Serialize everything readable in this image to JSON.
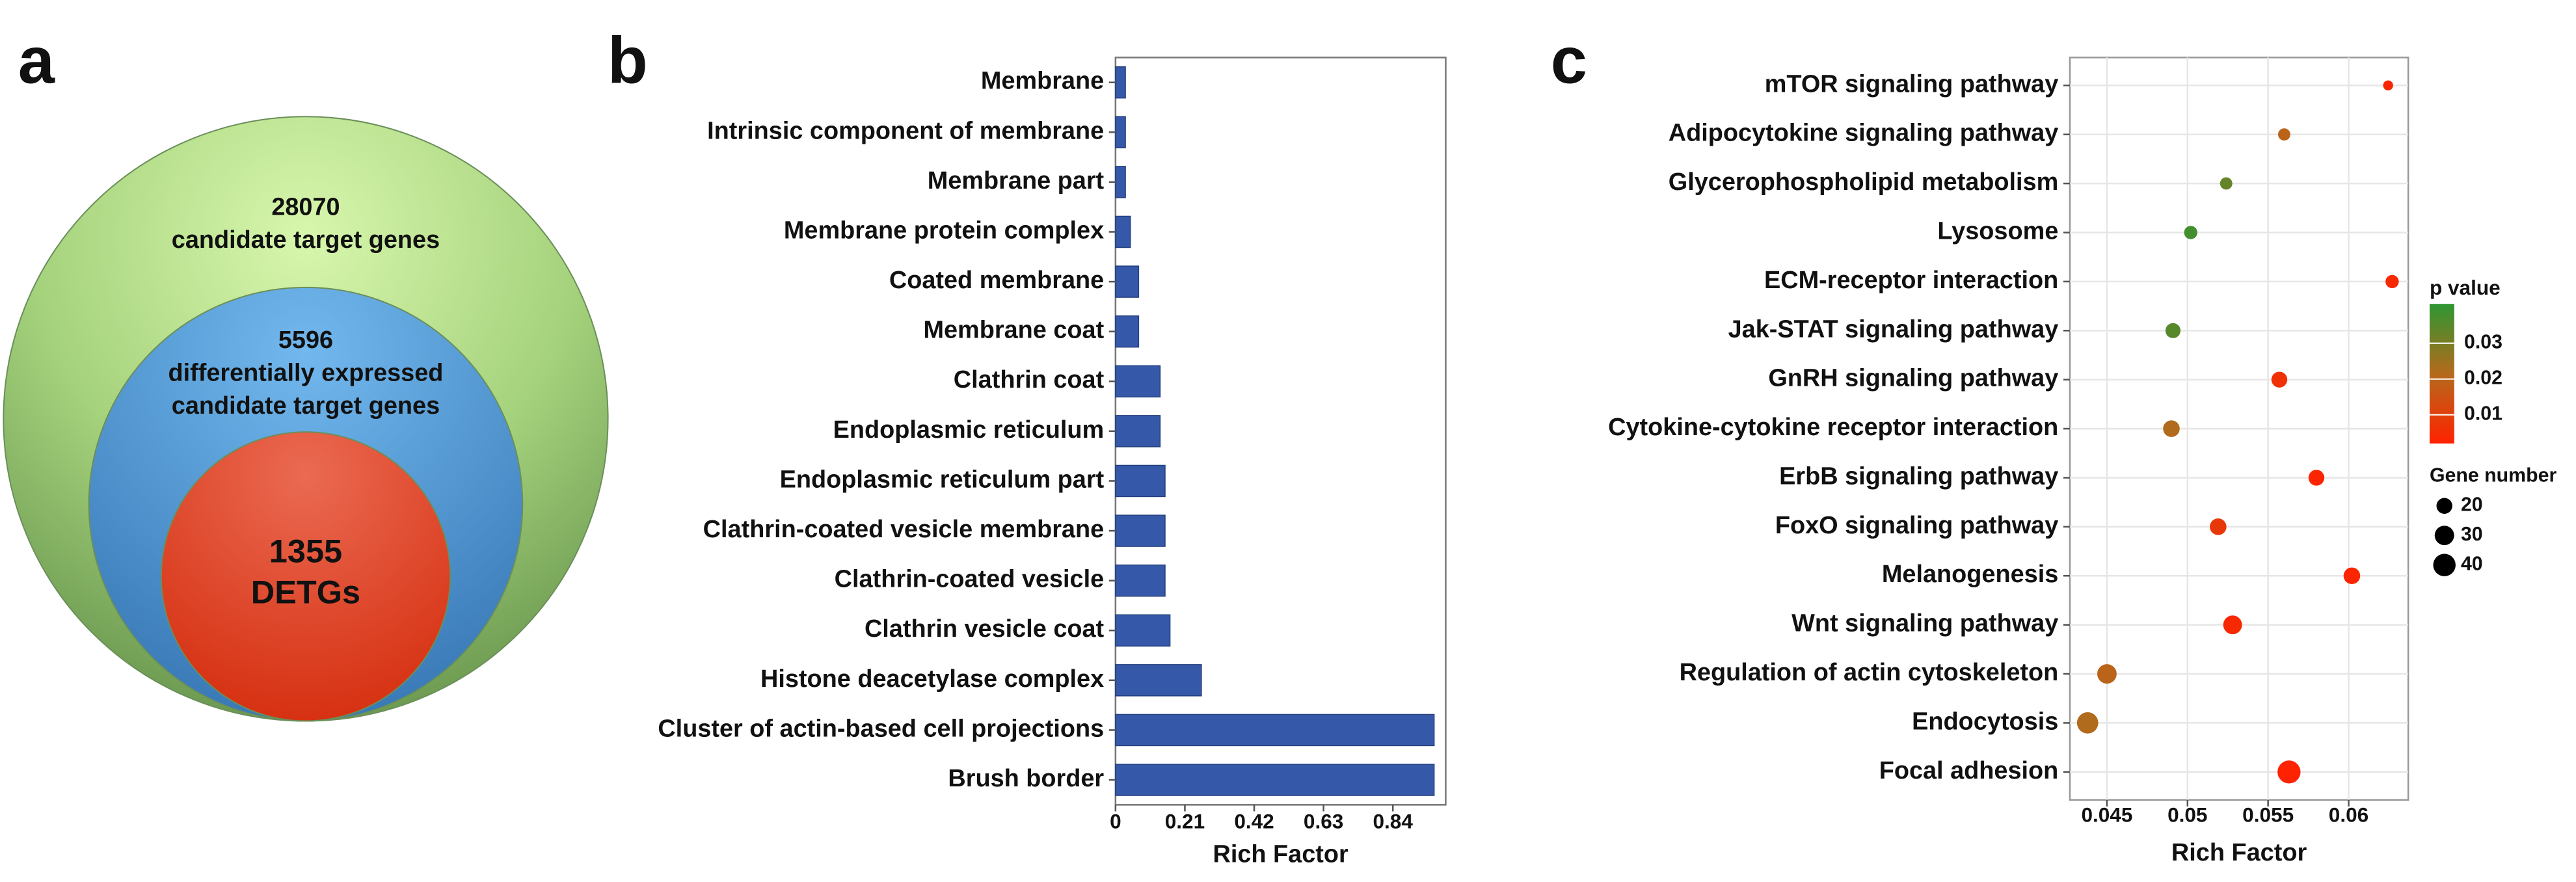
{
  "chart_data": [
    {
      "type": "venn",
      "panel_label": "a",
      "sets": [
        {
          "value": 28070,
          "label": [
            "candidate target genes"
          ]
        },
        {
          "value": 5596,
          "label": [
            "differentially expressed",
            "candidate target genes"
          ]
        },
        {
          "value": 1355,
          "label": [
            "DETGs"
          ]
        }
      ]
    },
    {
      "type": "bar",
      "panel_label": "b",
      "xlabel": "Rich Factor",
      "categories": [
        "Membrane",
        "Intrinsic component of membrane",
        "Membrane part",
        "Membrane protein complex",
        "Coated membrane",
        "Membrane coat",
        "Clathrin coat",
        "Endoplasmic reticulum",
        "Endoplasmic reticulum part",
        "Clathrin-coated vesicle membrane",
        "Clathrin-coated vesicle",
        "Clathrin vesicle coat",
        "Histone deacetylase complex",
        "Cluster of actin-based cell projections",
        "Brush border"
      ],
      "values": [
        0.03,
        0.03,
        0.03,
        0.045,
        0.07,
        0.07,
        0.135,
        0.135,
        0.15,
        0.15,
        0.15,
        0.165,
        0.26,
        0.965,
        0.965
      ],
      "color": "#3658a8",
      "xlim": [
        0,
        1.0
      ],
      "xticks": [
        0,
        0.21,
        0.42,
        0.63,
        0.84
      ]
    },
    {
      "type": "dot",
      "panel_label": "c",
      "xlabel": "Rich Factor",
      "categories": [
        "mTOR signaling pathway",
        "Adipocytokine signaling pathway",
        "Glycerophospholipid metabolism",
        "Lysosome",
        "ECM-receptor interaction",
        "Jak-STAT signaling pathway",
        "GnRH signaling pathway",
        "Cytokine-cytokine receptor interaction",
        "ErbB signaling pathway",
        "FoxO signaling pathway",
        "Melanogenesis",
        "Wnt signaling pathway",
        "Regulation of actin cytoskeleton",
        "Endocytosis",
        "Focal adhesion"
      ],
      "values": [
        0.06245,
        0.056,
        0.0524,
        0.0502,
        0.0627,
        0.0491,
        0.0557,
        0.049,
        0.058,
        0.0519,
        0.0602,
        0.0528,
        0.045,
        0.0438,
        0.0563
      ],
      "gene_number": [
        8,
        12,
        12,
        14,
        14,
        18,
        20,
        22,
        20,
        22,
        22,
        28,
        30,
        36,
        42
      ],
      "p_values": [
        0.003,
        0.02,
        0.033,
        0.038,
        0.004,
        0.035,
        0.006,
        0.022,
        0.003,
        0.008,
        0.003,
        0.004,
        0.02,
        0.022,
        0.002
      ],
      "xlim": [
        0.0427,
        0.0637
      ],
      "xticks": [
        0.045,
        0.05,
        0.055,
        0.06
      ],
      "grid": true,
      "color_title": "p value",
      "color_lim": [
        0.002,
        0.041
      ],
      "color_ticks": [
        0.01,
        0.02,
        0.03
      ],
      "colors": [
        "#ff2200",
        "#b46a1c",
        "#2e9632"
      ],
      "size_title": "Gene number",
      "size_ticks": [
        20,
        30,
        40
      ]
    }
  ]
}
